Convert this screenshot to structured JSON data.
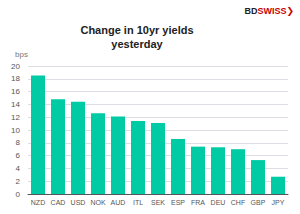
{
  "chart_data": {
    "type": "bar",
    "title": "Change in 10yr yields\nyesterday",
    "ylabel": "bps",
    "categories": [
      "NZD",
      "CAD",
      "USD",
      "NOK",
      "AUD",
      "ITL",
      "SEK",
      "ESP",
      "FRA",
      "DEU",
      "CHF",
      "GBP",
      "JPY"
    ],
    "values": [
      18.5,
      14.8,
      14.4,
      12.6,
      12.1,
      11.4,
      11.1,
      8.6,
      7.4,
      7.3,
      7.0,
      5.3,
      2.7
    ],
    "color": "#00CBA4",
    "ylim": [
      0,
      20
    ],
    "yticks": [
      0,
      2,
      4,
      6,
      8,
      10,
      12,
      14,
      16,
      18,
      20
    ],
    "grid": true,
    "annotations": [
      {
        "text": "BD",
        "color": "#222222"
      },
      {
        "text": "SWISS",
        "color": "#cc0000"
      },
      {
        "text": "❯",
        "color": "#cc0000"
      }
    ]
  }
}
